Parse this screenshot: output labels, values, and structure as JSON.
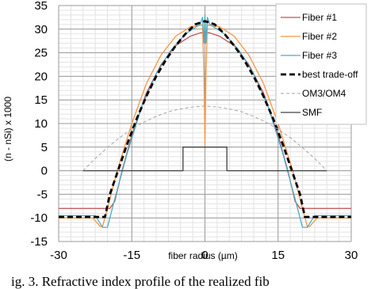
{
  "caption": "ig. 3.  Refractive index profile of the realized fib",
  "chart_data": {
    "type": "line",
    "title": "",
    "xlabel": "fiber radius (µm)",
    "ylabel": "(n - nSi) x 1000",
    "xlim": [
      -30,
      30
    ],
    "ylim": [
      -15,
      35
    ],
    "x_ticks": [
      -30,
      -15,
      0,
      15,
      30
    ],
    "y_ticks": [
      -15,
      -10,
      -5,
      0,
      5,
      10,
      15,
      20,
      25,
      30,
      35
    ],
    "grid": true,
    "legend_position": "top-right",
    "series": [
      {
        "name": "Fiber #1",
        "color": "#c0504d",
        "style": "solid",
        "x": [
          -30,
          -19.5,
          -18.5,
          -17,
          -15,
          -12,
          -9,
          -6,
          -3,
          -1,
          0,
          1,
          3,
          6,
          9,
          12,
          15,
          17,
          18.5,
          19.5,
          30
        ],
        "y": [
          -8,
          -8,
          -6.5,
          0,
          7.5,
          16.5,
          22.5,
          26.5,
          28.5,
          29.2,
          29.3,
          29.2,
          28.5,
          26.5,
          22.5,
          16.5,
          7.5,
          0,
          -6.5,
          -8,
          -8
        ]
      },
      {
        "name": "Fiber #2",
        "color": "#f79646",
        "style": "solid",
        "x": [
          -30,
          -23,
          -21.5,
          -21,
          -20,
          -18,
          -15,
          -12,
          -9,
          -6,
          -3,
          -0.5,
          -0.2,
          0,
          0.2,
          0.5,
          3,
          6,
          9,
          12,
          15,
          18,
          20,
          21,
          21.5,
          23,
          30
        ],
        "y": [
          -10,
          -10,
          -11.8,
          -11.8,
          -8,
          0,
          10,
          18.5,
          24.5,
          28.5,
          30.5,
          30.9,
          20,
          5.5,
          20,
          30.9,
          30.5,
          28.5,
          24.5,
          18.5,
          10,
          0,
          -8,
          -11.8,
          -11.8,
          -10,
          -10
        ]
      },
      {
        "name": "Fiber #3",
        "color": "#4bacc6",
        "style": "solid",
        "x": [
          -30,
          -22.5,
          -21,
          -20,
          -18.5,
          -16,
          -13,
          -10,
          -7,
          -4,
          -1,
          -0.5,
          -0.2,
          0,
          0.2,
          0.5,
          1,
          4,
          7,
          10,
          13,
          16,
          18.5,
          20,
          21,
          22.5,
          30
        ],
        "y": [
          -9.5,
          -9.5,
          -12,
          -12,
          -6,
          3.5,
          13.5,
          20.5,
          25.5,
          29,
          31,
          32.5,
          27,
          33,
          27,
          32.5,
          31,
          29,
          25.5,
          20.5,
          13.5,
          3.5,
          -6,
          -12,
          -12,
          -9.5,
          -9.5
        ]
      },
      {
        "name": "best trade-off",
        "color": "#000000",
        "style": "dashed-bold",
        "x": [
          -30,
          -20.5,
          -19.5,
          -18,
          -16,
          -14,
          -12,
          -10,
          -8,
          -6,
          -4,
          -2,
          0,
          2,
          4,
          6,
          8,
          10,
          12,
          14,
          16,
          18,
          19.5,
          20.5,
          30
        ],
        "y": [
          -9.8,
          -9.8,
          -5,
          -0.5,
          5.5,
          11,
          15.8,
          20,
          23.5,
          26.5,
          29,
          31,
          31.7,
          31,
          29,
          26.5,
          23.5,
          20,
          15.8,
          11,
          5.5,
          -0.5,
          -5,
          -9.8,
          -9.8
        ]
      },
      {
        "name": "OM3/OM4",
        "color": "#a6a6a6",
        "style": "dashed",
        "x": [
          -25,
          -22.5,
          -20,
          -17.5,
          -15,
          -12.5,
          -10,
          -7.5,
          -5,
          -2.5,
          0,
          2.5,
          5,
          7.5,
          10,
          12.5,
          15,
          17.5,
          20,
          22.5,
          25
        ],
        "y": [
          0,
          2.6,
          4.9,
          7.0,
          8.8,
          10.3,
          11.5,
          12.5,
          13.1,
          13.5,
          13.7,
          13.5,
          13.1,
          12.5,
          11.5,
          10.3,
          8.8,
          7.0,
          4.9,
          2.6,
          0
        ]
      },
      {
        "name": "SMF",
        "color": "#404040",
        "style": "solid",
        "x": [
          -25,
          -4.5,
          -4.5,
          4.5,
          4.5,
          25
        ],
        "y": [
          0,
          0,
          5,
          5,
          0,
          0
        ]
      }
    ]
  }
}
